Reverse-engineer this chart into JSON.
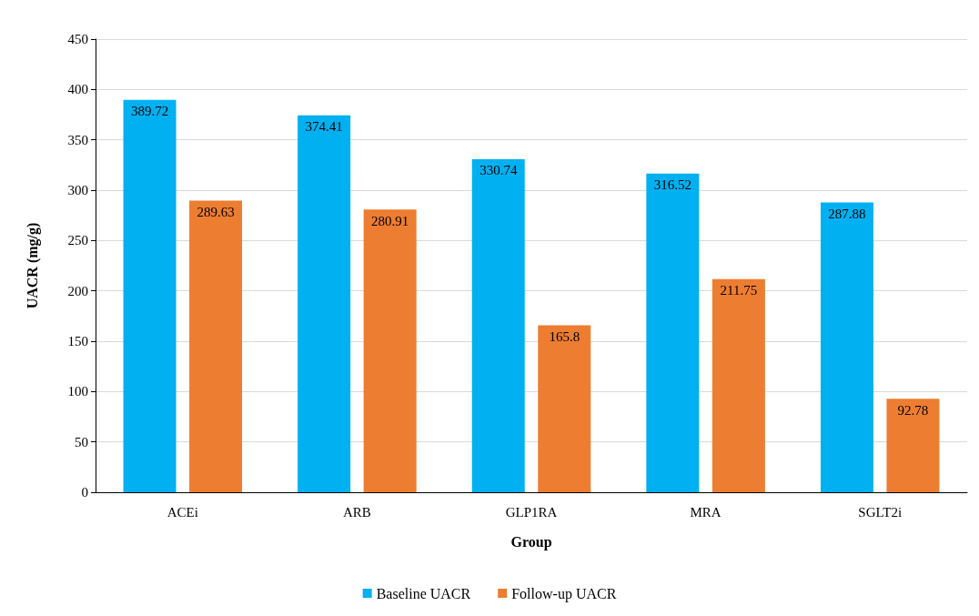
{
  "chart_data": {
    "type": "bar",
    "xlabel": "Group",
    "ylabel": "UACR (mg/g)",
    "categories": [
      "ACEi",
      "ARB",
      "GLP1RA",
      "MRA",
      "SGLT2i"
    ],
    "series": [
      {
        "name": "Baseline UACR",
        "color": "#00b0f0",
        "values": [
          389.72,
          374.41,
          330.74,
          316.52,
          287.88
        ]
      },
      {
        "name": "Follow-up UACR",
        "color": "#ed7d31",
        "values": [
          289.63,
          280.91,
          165.8,
          211.75,
          92.78
        ]
      }
    ],
    "ylim": [
      0,
      450
    ],
    "yticks": [
      0,
      50,
      100,
      150,
      200,
      250,
      300,
      350,
      400,
      450
    ],
    "grid": "y",
    "legend": "bottom",
    "data_labels": true
  }
}
